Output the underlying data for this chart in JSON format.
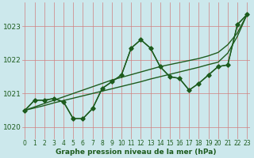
{
  "xlabel": "Graphe pression niveau de la mer (hPa)",
  "x": [
    0,
    1,
    2,
    3,
    4,
    5,
    6,
    7,
    8,
    9,
    10,
    11,
    12,
    13,
    14,
    15,
    16,
    17,
    18,
    19,
    20,
    21,
    22,
    23
  ],
  "line1": [
    1020.5,
    1020.8,
    1020.8,
    1020.85,
    1020.75,
    1020.25,
    1020.25,
    1020.55,
    1021.15,
    1021.35,
    1021.55,
    1022.35,
    1022.6,
    1022.35,
    1021.8,
    1021.5,
    1021.45,
    1021.1,
    1021.3,
    1021.55,
    1021.8,
    1021.85,
    1023.05,
    1023.35
  ],
  "line2": [
    1020.5,
    1020.8,
    1020.8,
    1020.85,
    1020.75,
    1020.25,
    1020.25,
    1020.55,
    1021.15,
    1021.35,
    1021.55,
    1022.35,
    1022.6,
    1022.35,
    1021.8,
    1021.5,
    1021.45,
    1021.1,
    1021.3,
    1021.55,
    1021.8,
    1021.85,
    1023.05,
    1023.35
  ],
  "trend1": [
    1020.5,
    1020.57,
    1020.64,
    1020.72,
    1020.79,
    1020.86,
    1020.93,
    1021.0,
    1021.07,
    1021.14,
    1021.21,
    1021.28,
    1021.35,
    1021.43,
    1021.5,
    1021.57,
    1021.64,
    1021.71,
    1021.78,
    1021.86,
    1021.93,
    1022.2,
    1022.7,
    1023.35
  ],
  "trend2": [
    1020.5,
    1020.6,
    1020.7,
    1020.8,
    1020.9,
    1021.0,
    1021.1,
    1021.2,
    1021.3,
    1021.4,
    1021.48,
    1021.56,
    1021.64,
    1021.72,
    1021.8,
    1021.86,
    1021.92,
    1021.98,
    1022.04,
    1022.12,
    1022.22,
    1022.45,
    1022.8,
    1023.35
  ],
  "bg_color": "#cce8ec",
  "grid_color": "#aacdd4",
  "line_color": "#1e5c1e",
  "ylim": [
    1019.65,
    1023.7
  ],
  "yticks": [
    1020,
    1021,
    1022,
    1023
  ],
  "xlim": [
    -0.3,
    23.3
  ],
  "xticks": [
    0,
    1,
    2,
    3,
    4,
    5,
    6,
    7,
    8,
    9,
    10,
    11,
    12,
    13,
    14,
    15,
    16,
    17,
    18,
    19,
    20,
    21,
    22,
    23
  ],
  "marker": "D",
  "marker_size": 2.5,
  "line_width": 1.0,
  "tick_fontsize": 5.5,
  "label_fontsize": 6.5
}
